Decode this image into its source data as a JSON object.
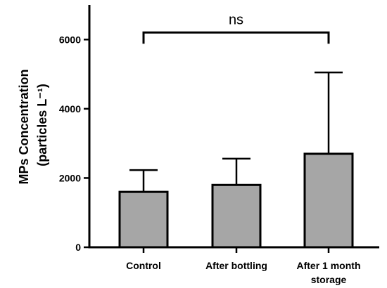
{
  "chart_data": {
    "type": "bar",
    "title": "",
    "xlabel": "",
    "ylabel_line1": "MPs Concentration",
    "ylabel_line2": "(particles L⁻¹)",
    "categories": [
      [
        "Control"
      ],
      [
        "After bottling"
      ],
      [
        "After 1 month",
        "storage"
      ]
    ],
    "values": [
      1600,
      1800,
      2700
    ],
    "error_upper": [
      2230,
      2560,
      5050
    ],
    "ylim": [
      0,
      7000
    ],
    "yticks": [
      0,
      2000,
      4000,
      6000
    ],
    "ytick_labels": [
      "0",
      "2000",
      "4000",
      "6000"
    ],
    "bar_color": "#a6a6a6",
    "grid": false,
    "annotations": [
      {
        "type": "significance-bracket",
        "from_category": 0,
        "to_category": 2,
        "y": 6000,
        "label": "ns"
      }
    ]
  }
}
